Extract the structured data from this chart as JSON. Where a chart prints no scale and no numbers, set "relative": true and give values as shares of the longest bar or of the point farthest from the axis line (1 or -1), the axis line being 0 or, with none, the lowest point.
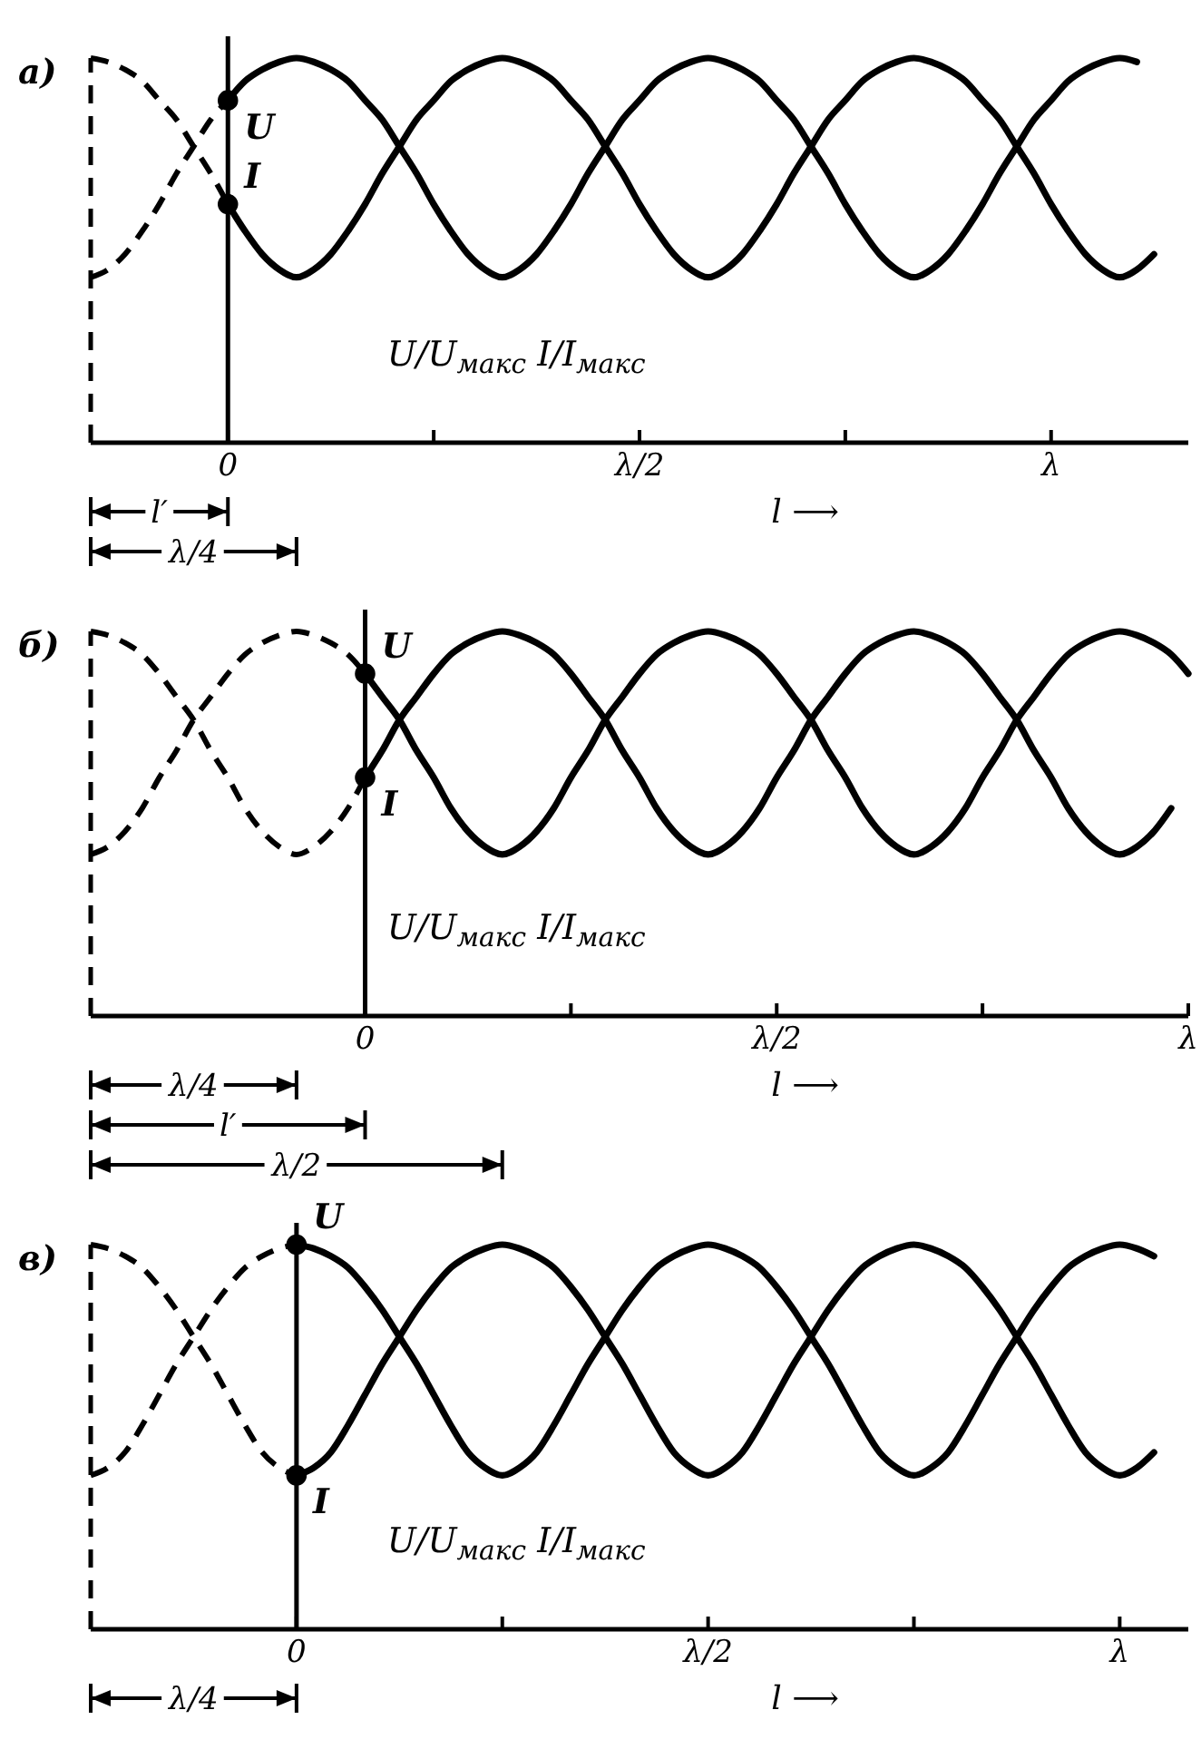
{
  "chart_data": [
    {
      "type": "line",
      "title": "а)",
      "xlabel": "l ⟶",
      "relative": true,
      "categories": [
        null,
        null,
        null,
        null,
        null,
        null,
        null,
        null,
        "0",
        null,
        null,
        null,
        null,
        null,
        null,
        null,
        null,
        null,
        null,
        null,
        null,
        null,
        null,
        null,
        null,
        null,
        null,
        null,
        null,
        null,
        null,
        null,
        "λ/2",
        null,
        null,
        null,
        null,
        null,
        null,
        null,
        null,
        null,
        null,
        null,
        null,
        null,
        null,
        null,
        null,
        null,
        null,
        null,
        null,
        null,
        null,
        null,
        "λ",
        null,
        null,
        null,
        null,
        null,
        null,
        null,
        null
      ],
      "annotations": [
        "U/U$_{макс}$ I/I$_{макс}$",
        "l′",
        "λ/4"
      ],
      "ref_lines": [
        {
          "axis": "x",
          "value": "0",
          "line_style": "solid"
        }
      ],
      "series": [
        {
          "color": "#000000",
          "line_style": "dashed",
          "values": [
            0.43,
            0.45,
            0.49,
            0.55,
            0.62,
            0.7,
            0.77,
            0.84,
            0.89,
            null,
            null,
            null,
            null,
            null,
            null,
            null,
            null,
            null,
            null,
            null,
            null,
            null,
            null,
            null,
            null,
            null,
            null,
            null,
            null,
            null,
            null,
            null,
            null,
            null,
            null,
            null,
            null,
            null,
            null,
            null,
            null,
            null,
            null,
            null,
            null,
            null,
            null,
            null,
            null,
            null,
            null,
            null,
            null,
            null,
            null,
            null,
            null,
            null,
            null,
            null,
            null,
            null,
            null,
            null,
            null
          ]
        },
        {
          "name": "U",
          "color": "#000000",
          "line_style": "solid",
          "values": [
            null,
            null,
            null,
            null,
            null,
            null,
            null,
            null,
            0.89,
            0.94,
            0.97,
            0.99,
            1.0,
            0.99,
            0.97,
            0.94,
            0.89,
            0.84,
            0.77,
            0.7,
            0.62,
            0.55,
            0.49,
            0.45,
            0.43,
            0.45,
            0.49,
            0.55,
            0.62,
            0.7,
            0.77,
            0.84,
            0.89,
            0.94,
            0.97,
            0.99,
            1.0,
            0.99,
            0.97,
            0.94,
            0.89,
            0.84,
            0.77,
            0.7,
            0.62,
            0.55,
            0.49,
            0.45,
            0.43,
            0.45,
            0.49,
            0.55,
            0.62,
            0.7,
            0.77,
            0.84,
            0.89,
            0.94,
            0.97,
            0.99,
            1.0,
            0.99,
            null,
            null,
            null
          ]
        },
        {
          "color": "#000000",
          "line_style": "dashed",
          "values": [
            1.0,
            0.99,
            0.97,
            0.94,
            0.89,
            0.84,
            0.77,
            0.7,
            0.62,
            null,
            null,
            null,
            null,
            null,
            null,
            null,
            null,
            null,
            null,
            null,
            null,
            null,
            null,
            null,
            null,
            null,
            null,
            null,
            null,
            null,
            null,
            null,
            null,
            null,
            null,
            null,
            null,
            null,
            null,
            null,
            null,
            null,
            null,
            null,
            null,
            null,
            null,
            null,
            null,
            null,
            null,
            null,
            null,
            null,
            null,
            null,
            null,
            null,
            null,
            null,
            null,
            null,
            null,
            null,
            null
          ]
        },
        {
          "name": "I",
          "color": "#000000",
          "line_style": "solid",
          "values": [
            null,
            null,
            null,
            null,
            null,
            null,
            null,
            null,
            0.62,
            0.55,
            0.49,
            0.45,
            0.43,
            0.45,
            0.49,
            0.55,
            0.62,
            0.7,
            0.77,
            0.84,
            0.89,
            0.94,
            0.97,
            0.99,
            1.0,
            0.99,
            0.97,
            0.94,
            0.89,
            0.84,
            0.77,
            0.7,
            0.62,
            0.55,
            0.49,
            0.45,
            0.43,
            0.45,
            0.49,
            0.55,
            0.62,
            0.7,
            0.77,
            0.84,
            0.89,
            0.94,
            0.97,
            0.99,
            1.0,
            0.99,
            0.97,
            0.94,
            0.89,
            0.84,
            0.77,
            0.7,
            0.62,
            0.55,
            0.49,
            0.45,
            0.43,
            0.45,
            0.49,
            null,
            null
          ]
        },
        {
          "type": "scatter",
          "color": "#000000",
          "marker": "circle",
          "x": [
            "0",
            "0"
          ],
          "values": [
            0.89,
            0.62
          ]
        }
      ]
    },
    {
      "type": "line",
      "title": "б)",
      "xlabel": "l ⟶",
      "relative": true,
      "categories": [
        null,
        null,
        null,
        null,
        null,
        null,
        null,
        null,
        null,
        null,
        null,
        null,
        null,
        null,
        null,
        null,
        "0",
        null,
        null,
        null,
        null,
        null,
        null,
        null,
        null,
        null,
        null,
        null,
        null,
        null,
        null,
        null,
        null,
        null,
        null,
        null,
        null,
        null,
        null,
        null,
        "λ/2",
        null,
        null,
        null,
        null,
        null,
        null,
        null,
        null,
        null,
        null,
        null,
        null,
        null,
        null,
        null,
        null,
        null,
        null,
        null,
        null,
        null,
        null,
        null,
        "λ"
      ],
      "annotations": [
        "U/U$_{макс}$ I/I$_{макс}$",
        "λ/4",
        "l′",
        "λ/2"
      ],
      "ref_lines": [
        {
          "axis": "x",
          "value": "0",
          "line_style": "solid"
        }
      ],
      "series": [
        {
          "color": "#000000",
          "line_style": "dashed",
          "values": [
            0.42,
            0.44,
            0.48,
            0.54,
            0.62,
            0.69,
            0.77,
            0.83,
            0.89,
            0.94,
            0.97,
            0.99,
            1.0,
            0.99,
            0.97,
            0.94,
            0.89,
            null,
            null,
            null,
            null,
            null,
            null,
            null,
            null,
            null,
            null,
            null,
            null,
            null,
            null,
            null,
            null,
            null,
            null,
            null,
            null,
            null,
            null,
            null,
            null,
            null,
            null,
            null,
            null,
            null,
            null,
            null,
            null,
            null,
            null,
            null,
            null,
            null,
            null,
            null,
            null,
            null,
            null,
            null,
            null,
            null,
            null,
            null,
            null
          ]
        },
        {
          "name": "U",
          "color": "#000000",
          "line_style": "solid",
          "values": [
            null,
            null,
            null,
            null,
            null,
            null,
            null,
            null,
            null,
            null,
            null,
            null,
            null,
            null,
            null,
            null,
            0.89,
            0.83,
            0.77,
            0.69,
            0.62,
            0.54,
            0.48,
            0.44,
            0.42,
            0.44,
            0.48,
            0.54,
            0.62,
            0.69,
            0.77,
            0.83,
            0.89,
            0.94,
            0.97,
            0.99,
            1.0,
            0.99,
            0.97,
            0.94,
            0.89,
            0.83,
            0.77,
            0.69,
            0.62,
            0.54,
            0.48,
            0.44,
            0.42,
            0.44,
            0.48,
            0.54,
            0.62,
            0.69,
            0.77,
            0.83,
            0.89,
            0.94,
            0.97,
            0.99,
            1.0,
            0.99,
            0.97,
            0.94,
            0.89
          ]
        },
        {
          "color": "#000000",
          "line_style": "dashed",
          "values": [
            1.0,
            0.99,
            0.97,
            0.94,
            0.89,
            0.83,
            0.77,
            0.69,
            0.62,
            0.54,
            0.48,
            0.44,
            0.42,
            0.44,
            0.48,
            0.54,
            0.62,
            null,
            null,
            null,
            null,
            null,
            null,
            null,
            null,
            null,
            null,
            null,
            null,
            null,
            null,
            null,
            null,
            null,
            null,
            null,
            null,
            null,
            null,
            null,
            null,
            null,
            null,
            null,
            null,
            null,
            null,
            null,
            null,
            null,
            null,
            null,
            null,
            null,
            null,
            null,
            null,
            null,
            null,
            null,
            null,
            null,
            null,
            null,
            null
          ]
        },
        {
          "name": "I",
          "color": "#000000",
          "line_style": "solid",
          "values": [
            null,
            null,
            null,
            null,
            null,
            null,
            null,
            null,
            null,
            null,
            null,
            null,
            null,
            null,
            null,
            null,
            0.62,
            0.69,
            0.77,
            0.83,
            0.89,
            0.94,
            0.97,
            0.99,
            1.0,
            0.99,
            0.97,
            0.94,
            0.89,
            0.83,
            0.77,
            0.69,
            0.62,
            0.54,
            0.48,
            0.44,
            0.42,
            0.44,
            0.48,
            0.54,
            0.62,
            0.69,
            0.77,
            0.83,
            0.89,
            0.94,
            0.97,
            0.99,
            1.0,
            0.99,
            0.97,
            0.94,
            0.89,
            0.83,
            0.77,
            0.69,
            0.62,
            0.54,
            0.48,
            0.44,
            0.42,
            0.44,
            0.48,
            0.54,
            null
          ]
        },
        {
          "type": "scatter",
          "color": "#000000",
          "marker": "circle",
          "x": [
            "0",
            "0"
          ],
          "values": [
            0.89,
            0.62
          ]
        }
      ]
    },
    {
      "type": "line",
      "title": "в)",
      "xlabel": "l ⟶",
      "relative": true,
      "categories": [
        null,
        null,
        null,
        null,
        null,
        null,
        null,
        null,
        null,
        null,
        null,
        null,
        "0",
        null,
        null,
        null,
        null,
        null,
        null,
        null,
        null,
        null,
        null,
        null,
        null,
        null,
        null,
        null,
        null,
        null,
        null,
        null,
        null,
        null,
        null,
        null,
        "λ/2",
        null,
        null,
        null,
        null,
        null,
        null,
        null,
        null,
        null,
        null,
        null,
        null,
        null,
        null,
        null,
        null,
        null,
        null,
        null,
        null,
        null,
        null,
        null,
        "λ",
        null,
        null,
        null,
        null
      ],
      "annotations": [
        "U/U$_{макс}$ I/I$_{макс}$",
        "λ/4"
      ],
      "ref_lines": [
        {
          "axis": "x",
          "value": "0",
          "line_style": "solid"
        }
      ],
      "series": [
        {
          "color": "#000000",
          "line_style": "dashed",
          "values": [
            0.4,
            0.42,
            0.46,
            0.53,
            0.61,
            0.69,
            0.76,
            0.83,
            0.89,
            0.94,
            0.97,
            0.99,
            1.0,
            null,
            null,
            null,
            null,
            null,
            null,
            null,
            null,
            null,
            null,
            null,
            null,
            null,
            null,
            null,
            null,
            null,
            null,
            null,
            null,
            null,
            null,
            null,
            null,
            null,
            null,
            null,
            null,
            null,
            null,
            null,
            null,
            null,
            null,
            null,
            null,
            null,
            null,
            null,
            null,
            null,
            null,
            null,
            null,
            null,
            null,
            null,
            null,
            null,
            null,
            null,
            null
          ]
        },
        {
          "name": "U",
          "color": "#000000",
          "line_style": "solid",
          "values": [
            null,
            null,
            null,
            null,
            null,
            null,
            null,
            null,
            null,
            null,
            null,
            null,
            1.0,
            0.99,
            0.97,
            0.94,
            0.89,
            0.83,
            0.76,
            0.69,
            0.61,
            0.53,
            0.46,
            0.42,
            0.4,
            0.42,
            0.46,
            0.53,
            0.61,
            0.69,
            0.76,
            0.83,
            0.89,
            0.94,
            0.97,
            0.99,
            1.0,
            0.99,
            0.97,
            0.94,
            0.89,
            0.83,
            0.76,
            0.69,
            0.61,
            0.53,
            0.46,
            0.42,
            0.4,
            0.42,
            0.46,
            0.53,
            0.61,
            0.69,
            0.76,
            0.83,
            0.89,
            0.94,
            0.97,
            0.99,
            1.0,
            0.99,
            0.97,
            null,
            null
          ]
        },
        {
          "color": "#000000",
          "line_style": "dashed",
          "values": [
            1.0,
            0.99,
            0.97,
            0.94,
            0.89,
            0.83,
            0.76,
            0.69,
            0.61,
            0.53,
            0.46,
            0.42,
            0.4,
            null,
            null,
            null,
            null,
            null,
            null,
            null,
            null,
            null,
            null,
            null,
            null,
            null,
            null,
            null,
            null,
            null,
            null,
            null,
            null,
            null,
            null,
            null,
            null,
            null,
            null,
            null,
            null,
            null,
            null,
            null,
            null,
            null,
            null,
            null,
            null,
            null,
            null,
            null,
            null,
            null,
            null,
            null,
            null,
            null,
            null,
            null,
            null,
            null,
            null,
            null,
            null
          ]
        },
        {
          "name": "I",
          "color": "#000000",
          "line_style": "solid",
          "values": [
            null,
            null,
            null,
            null,
            null,
            null,
            null,
            null,
            null,
            null,
            null,
            null,
            0.4,
            0.42,
            0.46,
            0.53,
            0.61,
            0.69,
            0.76,
            0.83,
            0.89,
            0.94,
            0.97,
            0.99,
            1.0,
            0.99,
            0.97,
            0.94,
            0.89,
            0.83,
            0.76,
            0.69,
            0.61,
            0.53,
            0.46,
            0.42,
            0.4,
            0.42,
            0.46,
            0.53,
            0.61,
            0.69,
            0.76,
            0.83,
            0.89,
            0.94,
            0.97,
            0.99,
            1.0,
            0.99,
            0.97,
            0.94,
            0.89,
            0.83,
            0.76,
            0.69,
            0.61,
            0.53,
            0.46,
            0.42,
            0.4,
            0.42,
            0.46,
            null,
            null
          ]
        },
        {
          "type": "scatter",
          "color": "#000000",
          "marker": "circle",
          "x": [
            "0",
            "0"
          ],
          "values": [
            1.0,
            0.4
          ]
        }
      ]
    }
  ]
}
